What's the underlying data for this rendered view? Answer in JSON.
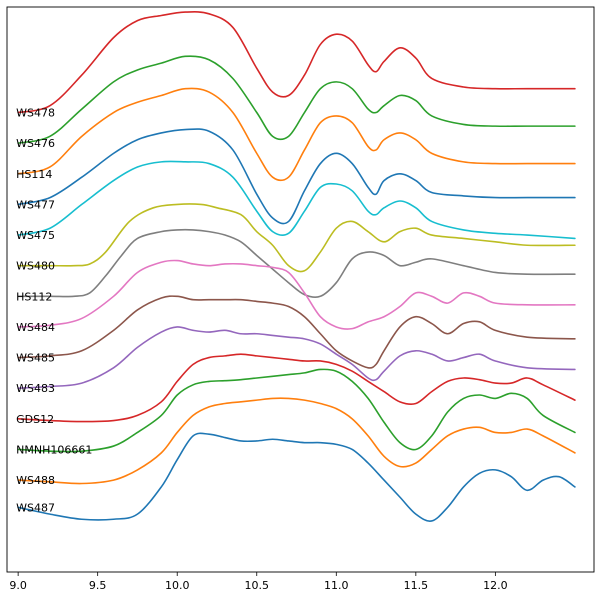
{
  "chart_data": {
    "type": "line",
    "title": "",
    "xlabel": "",
    "ylabel": "",
    "xlim": [
      8.93,
      12.62
    ],
    "ylim": [
      -1.0,
      15.6
    ],
    "grid": false,
    "legend": "none",
    "xticks": [
      9.0,
      9.5,
      10.0,
      10.5,
      11.0,
      11.5,
      12.0
    ],
    "xtick_labels": [
      "9.0",
      "9.5",
      "10.0",
      "10.5",
      "11.0",
      "11.5",
      "12.0"
    ],
    "colors": [
      "#d62728",
      "#2ca02c",
      "#ff7f0e",
      "#1f77b4",
      "#17becf",
      "#bcbd22",
      "#7f7f7f",
      "#e377c2",
      "#8c564b",
      "#9467bd",
      "#d62728",
      "#2ca02c",
      "#ff7f0e",
      "#1f77b4"
    ],
    "series": [
      {
        "name": "WS478",
        "label_y": 12.5,
        "x": [
          9.0,
          9.2,
          9.4,
          9.6,
          9.75,
          9.9,
          10.05,
          10.2,
          10.35,
          10.5,
          10.6,
          10.7,
          10.8,
          10.9,
          11.0,
          11.1,
          11.2,
          11.25,
          11.3,
          11.4,
          11.5,
          11.6,
          11.8,
          12.0,
          12.2,
          12.5
        ],
        "y": [
          12.5,
          12.7,
          13.6,
          14.7,
          15.2,
          15.35,
          15.45,
          15.4,
          15.0,
          13.8,
          13.1,
          13.0,
          13.6,
          14.5,
          14.8,
          14.6,
          13.9,
          13.7,
          14.0,
          14.4,
          14.1,
          13.5,
          13.25,
          13.2,
          13.2,
          13.2
        ]
      },
      {
        "name": "WS476",
        "label_y": 11.6,
        "x": [
          9.0,
          9.2,
          9.4,
          9.6,
          9.75,
          9.9,
          10.05,
          10.2,
          10.35,
          10.5,
          10.6,
          10.7,
          10.8,
          10.9,
          11.0,
          11.1,
          11.2,
          11.25,
          11.3,
          11.4,
          11.5,
          11.6,
          11.8,
          12.0,
          12.2,
          12.5
        ],
        "y": [
          11.6,
          11.8,
          12.6,
          13.4,
          13.75,
          13.95,
          14.15,
          14.05,
          13.5,
          12.5,
          11.8,
          11.8,
          12.5,
          13.2,
          13.4,
          13.2,
          12.6,
          12.5,
          12.7,
          13.0,
          12.85,
          12.4,
          12.15,
          12.1,
          12.1,
          12.1
        ]
      },
      {
        "name": "HS114",
        "label_y": 10.7,
        "x": [
          9.0,
          9.2,
          9.4,
          9.6,
          9.75,
          9.9,
          10.05,
          10.2,
          10.35,
          10.5,
          10.6,
          10.7,
          10.8,
          10.9,
          11.0,
          11.1,
          11.2,
          11.25,
          11.3,
          11.4,
          11.5,
          11.6,
          11.8,
          12.0,
          12.2,
          12.5
        ],
        "y": [
          10.7,
          10.9,
          11.8,
          12.5,
          12.8,
          13.0,
          13.2,
          13.1,
          12.5,
          11.3,
          10.6,
          10.6,
          11.4,
          12.2,
          12.4,
          12.2,
          11.5,
          11.4,
          11.7,
          11.9,
          11.7,
          11.3,
          11.05,
          11.0,
          11.0,
          11.0
        ]
      },
      {
        "name": "WS477",
        "label_y": 9.8,
        "x": [
          9.0,
          9.2,
          9.4,
          9.6,
          9.75,
          9.9,
          10.05,
          10.2,
          10.35,
          10.5,
          10.6,
          10.7,
          10.8,
          10.9,
          11.0,
          11.1,
          11.2,
          11.25,
          11.3,
          11.4,
          11.5,
          11.6,
          11.8,
          12.0,
          12.2,
          12.5
        ],
        "y": [
          9.8,
          10.0,
          10.6,
          11.3,
          11.7,
          11.9,
          12.0,
          11.95,
          11.4,
          10.1,
          9.4,
          9.3,
          10.2,
          11.0,
          11.3,
          11.0,
          10.3,
          10.1,
          10.5,
          10.7,
          10.5,
          10.15,
          10.05,
          10.0,
          10.0,
          10.0
        ]
      },
      {
        "name": "WS475",
        "label_y": 8.9,
        "x": [
          9.0,
          9.2,
          9.4,
          9.6,
          9.75,
          9.9,
          10.05,
          10.2,
          10.35,
          10.5,
          10.6,
          10.7,
          10.8,
          10.9,
          11.0,
          11.1,
          11.2,
          11.25,
          11.3,
          11.4,
          11.5,
          11.6,
          11.8,
          12.0,
          12.2,
          12.5
        ],
        "y": [
          8.9,
          9.1,
          9.8,
          10.5,
          10.9,
          11.05,
          11.05,
          11.0,
          10.6,
          9.6,
          9.0,
          8.95,
          9.6,
          10.3,
          10.4,
          10.2,
          9.6,
          9.5,
          9.7,
          9.9,
          9.7,
          9.3,
          9.05,
          8.95,
          8.9,
          8.8
        ]
      },
      {
        "name": "WS480",
        "label_y": 8.0,
        "x": [
          9.0,
          9.2,
          9.35,
          9.45,
          9.55,
          9.7,
          9.85,
          10.0,
          10.15,
          10.25,
          10.4,
          10.5,
          10.6,
          10.7,
          10.8,
          10.9,
          11.0,
          11.1,
          11.2,
          11.3,
          11.4,
          11.5,
          11.6,
          11.8,
          12.0,
          12.2,
          12.5
        ],
        "y": [
          8.0,
          8.0,
          8.0,
          8.05,
          8.4,
          9.3,
          9.7,
          9.8,
          9.8,
          9.7,
          9.5,
          9.0,
          8.6,
          8.0,
          7.85,
          8.4,
          9.1,
          9.3,
          9.0,
          8.7,
          9.0,
          9.1,
          8.9,
          8.8,
          8.7,
          8.6,
          8.6
        ]
      },
      {
        "name": "HS112",
        "label_y": 7.1,
        "x": [
          9.0,
          9.2,
          9.35,
          9.45,
          9.55,
          9.65,
          9.75,
          9.9,
          10.0,
          10.1,
          10.2,
          10.3,
          10.4,
          10.5,
          10.6,
          10.7,
          10.8,
          10.9,
          11.0,
          11.1,
          11.2,
          11.3,
          11.4,
          11.5,
          11.6,
          11.8,
          12.0,
          12.2,
          12.5
        ],
        "y": [
          7.1,
          7.1,
          7.1,
          7.2,
          7.7,
          8.3,
          8.8,
          9.0,
          9.05,
          9.05,
          9.0,
          8.9,
          8.7,
          8.3,
          7.9,
          7.5,
          7.15,
          7.1,
          7.5,
          8.2,
          8.4,
          8.3,
          8.0,
          8.1,
          8.2,
          8.0,
          7.8,
          7.75,
          7.75
        ]
      },
      {
        "name": "WS484",
        "label_y": 6.2,
        "x": [
          9.0,
          9.2,
          9.4,
          9.6,
          9.75,
          9.9,
          10.0,
          10.1,
          10.2,
          10.3,
          10.4,
          10.5,
          10.6,
          10.7,
          10.8,
          10.9,
          11.0,
          11.1,
          11.2,
          11.3,
          11.4,
          11.5,
          11.6,
          11.7,
          11.8,
          11.9,
          12.0,
          12.2,
          12.5
        ],
        "y": [
          6.2,
          6.25,
          6.45,
          7.1,
          7.8,
          8.1,
          8.15,
          8.05,
          8.0,
          8.05,
          8.05,
          8.0,
          7.95,
          7.8,
          7.2,
          6.5,
          6.2,
          6.15,
          6.35,
          6.5,
          6.8,
          7.2,
          7.1,
          6.9,
          7.2,
          7.1,
          6.9,
          6.85,
          6.85
        ]
      },
      {
        "name": "WS485",
        "label_y": 5.3,
        "x": [
          9.0,
          9.2,
          9.4,
          9.6,
          9.75,
          9.9,
          10.0,
          10.1,
          10.2,
          10.3,
          10.4,
          10.5,
          10.6,
          10.7,
          10.8,
          10.9,
          11.0,
          11.1,
          11.2,
          11.25,
          11.3,
          11.4,
          11.5,
          11.6,
          11.7,
          11.8,
          11.9,
          12.0,
          12.2,
          12.5
        ],
        "y": [
          5.3,
          5.35,
          5.5,
          6.1,
          6.7,
          7.05,
          7.1,
          7.0,
          7.0,
          7.0,
          7.0,
          6.95,
          6.9,
          6.8,
          6.5,
          6.0,
          5.5,
          5.2,
          5.0,
          5.1,
          5.5,
          6.2,
          6.5,
          6.3,
          6.0,
          6.3,
          6.35,
          6.1,
          5.9,
          5.85
        ]
      },
      {
        "name": "WS483",
        "label_y": 4.4,
        "x": [
          9.0,
          9.2,
          9.4,
          9.6,
          9.75,
          9.9,
          10.0,
          10.1,
          10.2,
          10.3,
          10.4,
          10.5,
          10.6,
          10.7,
          10.8,
          10.9,
          11.0,
          11.1,
          11.2,
          11.25,
          11.3,
          11.4,
          11.5,
          11.6,
          11.7,
          11.8,
          11.9,
          12.0,
          12.2,
          12.5
        ],
        "y": [
          4.4,
          4.45,
          4.55,
          5.0,
          5.6,
          6.05,
          6.2,
          6.1,
          6.05,
          6.1,
          6.0,
          6.0,
          5.95,
          5.9,
          5.85,
          5.7,
          5.4,
          5.1,
          4.7,
          4.65,
          4.9,
          5.35,
          5.5,
          5.4,
          5.2,
          5.3,
          5.4,
          5.2,
          5.0,
          4.95
        ]
      },
      {
        "name": "GDS12",
        "label_y": 3.5,
        "x": [
          9.0,
          9.2,
          9.4,
          9.6,
          9.75,
          9.9,
          10.0,
          10.1,
          10.2,
          10.3,
          10.4,
          10.5,
          10.6,
          10.7,
          10.8,
          10.9,
          11.0,
          11.1,
          11.2,
          11.3,
          11.4,
          11.5,
          11.6,
          11.7,
          11.8,
          11.9,
          12.0,
          12.1,
          12.2,
          12.3,
          12.5
        ],
        "y": [
          3.5,
          3.45,
          3.42,
          3.45,
          3.6,
          4.0,
          4.6,
          5.1,
          5.3,
          5.35,
          5.4,
          5.35,
          5.3,
          5.25,
          5.2,
          5.2,
          5.1,
          4.9,
          4.6,
          4.3,
          4.0,
          3.95,
          4.3,
          4.6,
          4.7,
          4.65,
          4.55,
          4.55,
          4.7,
          4.5,
          4.05
        ]
      },
      {
        "name": "NMNH106661",
        "label_y": 2.6,
        "x": [
          9.0,
          9.2,
          9.4,
          9.6,
          9.75,
          9.9,
          10.0,
          10.1,
          10.2,
          10.3,
          10.4,
          10.5,
          10.6,
          10.7,
          10.8,
          10.9,
          11.0,
          11.1,
          11.2,
          11.3,
          11.4,
          11.5,
          11.6,
          11.7,
          11.8,
          11.9,
          12.0,
          12.1,
          12.2,
          12.3,
          12.5
        ],
        "y": [
          2.6,
          2.55,
          2.55,
          2.7,
          3.1,
          3.6,
          4.2,
          4.5,
          4.6,
          4.62,
          4.65,
          4.7,
          4.75,
          4.8,
          4.85,
          4.95,
          4.9,
          4.6,
          4.1,
          3.4,
          2.8,
          2.6,
          3.0,
          3.7,
          4.1,
          4.2,
          4.1,
          4.25,
          4.1,
          3.6,
          3.1
        ]
      },
      {
        "name": "WS488",
        "label_y": 1.7,
        "x": [
          9.0,
          9.2,
          9.4,
          9.6,
          9.75,
          9.9,
          10.0,
          10.1,
          10.2,
          10.3,
          10.4,
          10.5,
          10.6,
          10.7,
          10.8,
          10.9,
          11.0,
          11.1,
          11.2,
          11.3,
          11.4,
          11.5,
          11.6,
          11.7,
          11.8,
          11.9,
          12.0,
          12.1,
          12.2,
          12.3,
          12.5
        ],
        "y": [
          1.7,
          1.65,
          1.6,
          1.7,
          2.0,
          2.5,
          3.1,
          3.6,
          3.85,
          3.95,
          4.0,
          4.05,
          4.1,
          4.1,
          4.05,
          3.95,
          3.8,
          3.5,
          3.0,
          2.4,
          2.1,
          2.2,
          2.6,
          3.0,
          3.2,
          3.25,
          3.1,
          3.1,
          3.2,
          3.0,
          2.5
        ]
      },
      {
        "name": "WS487",
        "label_y": 0.9,
        "x": [
          9.0,
          9.2,
          9.4,
          9.6,
          9.75,
          9.9,
          10.0,
          10.1,
          10.2,
          10.3,
          10.4,
          10.5,
          10.6,
          10.7,
          10.8,
          10.9,
          11.0,
          11.1,
          11.2,
          11.3,
          11.4,
          11.5,
          11.6,
          11.7,
          11.8,
          11.9,
          12.0,
          12.1,
          12.2,
          12.3,
          12.4,
          12.5
        ],
        "y": [
          0.9,
          0.7,
          0.55,
          0.55,
          0.7,
          1.5,
          2.3,
          3.0,
          3.05,
          2.95,
          2.85,
          2.85,
          2.9,
          2.85,
          2.8,
          2.8,
          2.75,
          2.6,
          2.2,
          1.7,
          1.2,
          0.7,
          0.5,
          0.9,
          1.5,
          1.9,
          2.0,
          1.8,
          1.4,
          1.7,
          1.8,
          1.5
        ]
      }
    ]
  }
}
